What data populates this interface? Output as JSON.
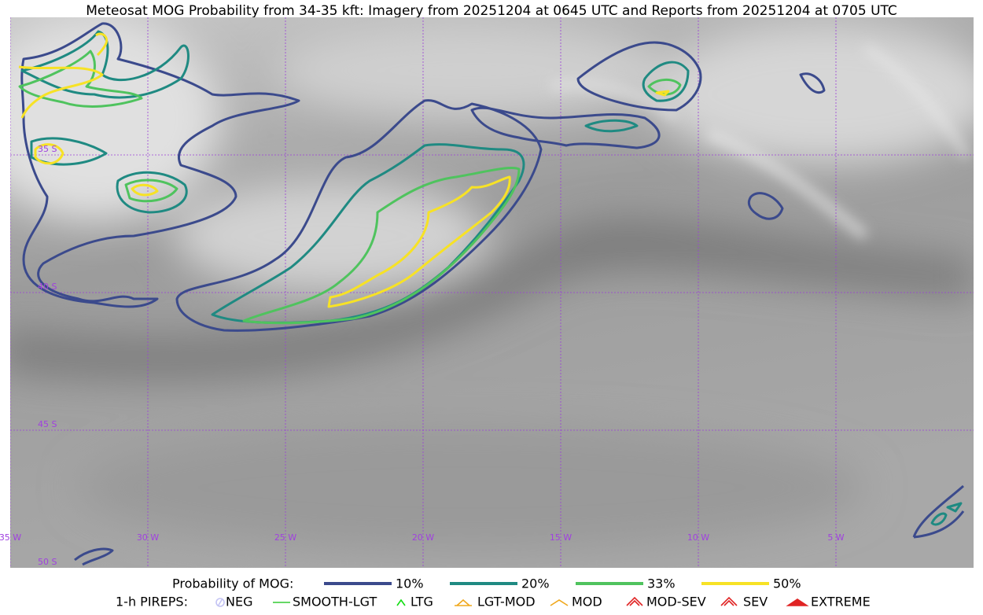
{
  "header": {
    "title": "Meteosat MOG Probability from 34-35 kft: Imagery from 20251204 at 0645 UTC and Reports from 20251204 at 0705 UTC"
  },
  "map": {
    "lat_labels": [
      "35 S",
      "40 S",
      "45 S",
      "50 S"
    ],
    "lon_labels": [
      "35 W",
      "30 W",
      "25 W",
      "20 W",
      "15 W",
      "10 W",
      "5 W"
    ]
  },
  "legend": {
    "probability": {
      "title": "Probability of MOG:",
      "items": [
        {
          "label": "10%",
          "color": "#3b4a8c"
        },
        {
          "label": "20%",
          "color": "#1f8a82"
        },
        {
          "label": "33%",
          "color": "#4fc35e"
        },
        {
          "label": "50%",
          "color": "#f7e225"
        }
      ]
    },
    "pireps": {
      "title": "1-h PIREPS:",
      "items": [
        {
          "label": "NEG",
          "color": "#c4c4f4"
        },
        {
          "label": "SMOOTH-LGT",
          "color": "#33cc33"
        },
        {
          "label": "LTG",
          "color": "#11dd11"
        },
        {
          "label": "LGT-MOD",
          "color": "#f0a81c"
        },
        {
          "label": "MOD",
          "color": "#f0a81c"
        },
        {
          "label": "MOD-SEV",
          "color": "#e02424"
        },
        {
          "label": "SEV",
          "color": "#e02424"
        },
        {
          "label": "EXTREME",
          "color": "#e02424"
        }
      ]
    }
  }
}
